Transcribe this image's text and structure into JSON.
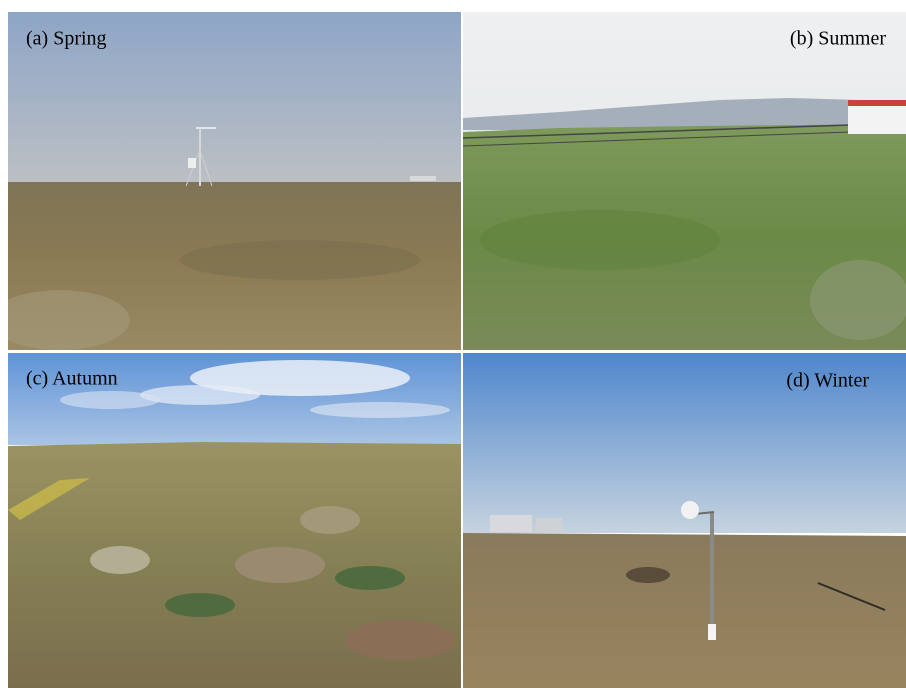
{
  "panels": [
    {
      "label": "(a) Spring"
    },
    {
      "label": "(b) Summer"
    },
    {
      "label": "(c) Autumn"
    },
    {
      "label": "(d) Winter"
    }
  ]
}
